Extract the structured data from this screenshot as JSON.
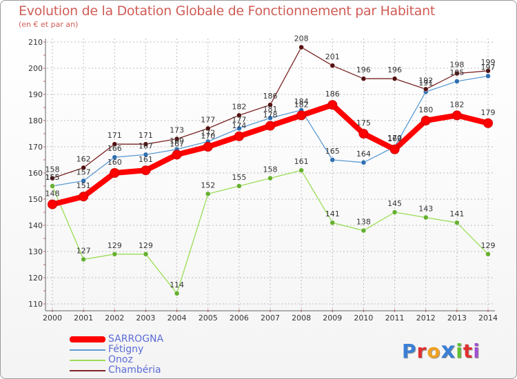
{
  "chart_data": {
    "type": "line",
    "title": "Evolution de la Dotation Globale de Fonctionnement par Habitant",
    "subtitle": "(en € et par an)",
    "categories": [
      "2000",
      "2001",
      "2002",
      "2003",
      "2004",
      "2005",
      "2006",
      "2007",
      "2008",
      "2009",
      "2010",
      "2011",
      "2012",
      "2013",
      "2014"
    ],
    "ylim": [
      110,
      210
    ],
    "yticks": [
      110,
      120,
      130,
      140,
      150,
      160,
      170,
      180,
      190,
      200,
      210
    ],
    "grid": true,
    "legend_position": "bottom-left",
    "series": [
      {
        "name": "SARROGNA",
        "color": "#ff0000",
        "emphasis": true,
        "values": [
          148,
          151,
          160,
          161,
          167,
          170,
          174,
          178,
          182,
          186,
          175,
          169,
          180,
          182,
          179
        ]
      },
      {
        "name": "Fétigny",
        "color": "#5b9bd5",
        "values": [
          155,
          157,
          166,
          167,
          169,
          172,
          177,
          181,
          184,
          165,
          164,
          170,
          191,
          195,
          197
        ]
      },
      {
        "name": "Onoz",
        "color": "#99dd55",
        "values": [
          155,
          127,
          129,
          129,
          114,
          152,
          155,
          158,
          161,
          141,
          138,
          145,
          143,
          141,
          129
        ]
      },
      {
        "name": "Chambéria",
        "color": "#7a2222",
        "values": [
          158,
          162,
          171,
          171,
          173,
          177,
          182,
          186,
          208,
          201,
          196,
          196,
          192,
          198,
          199
        ]
      }
    ]
  },
  "logo": {
    "text": "Proxiti",
    "colors": [
      "#3a7fd5",
      "#e03030",
      "#f0a020",
      "#3a7fd5",
      "#60c030",
      "#e03030",
      "#a050d0"
    ]
  },
  "colors": {
    "title": "#d05c56",
    "axis": "#333333",
    "grid": "#bbbbbb",
    "legend_text": "#5b6bd5"
  }
}
